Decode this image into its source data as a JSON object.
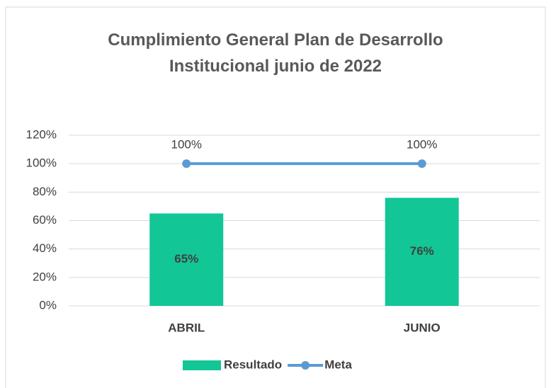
{
  "chart_data": {
    "type": "bar",
    "title": "Cumplimiento General Plan de Desarrollo Institucional junio de 2022",
    "categories": [
      "ABRIL",
      "JUNIO"
    ],
    "series": [
      {
        "name": "Resultado",
        "type": "bar",
        "color": "#12c795",
        "values": [
          65,
          76
        ],
        "value_labels": [
          "65%",
          "76%"
        ]
      },
      {
        "name": "Meta",
        "type": "line",
        "color": "#5b9bd5",
        "values": [
          100,
          100
        ],
        "value_labels": [
          "100%",
          "100%"
        ]
      }
    ],
    "ylim": [
      0,
      120
    ],
    "yticks": [
      {
        "value": 0,
        "label": "0%"
      },
      {
        "value": 20,
        "label": "20%"
      },
      {
        "value": 40,
        "label": "40%"
      },
      {
        "value": 60,
        "label": "60%"
      },
      {
        "value": 80,
        "label": "80%"
      },
      {
        "value": 100,
        "label": "100%"
      },
      {
        "value": 120,
        "label": "120%"
      }
    ],
    "grid": true,
    "legend": "bottom"
  }
}
